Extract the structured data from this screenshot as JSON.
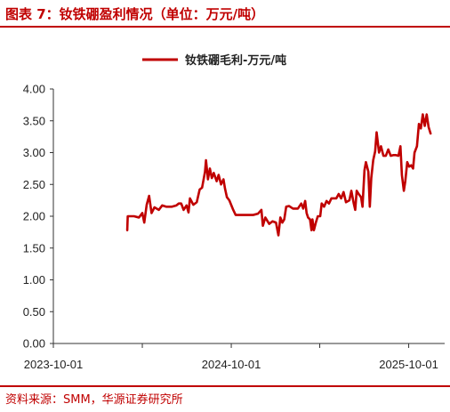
{
  "header": {
    "title": "图表 7：钕铁硼盈利情况（单位：万元/吨）"
  },
  "footer": {
    "source": "资料来源：SMM，华源证券研究所"
  },
  "colors": {
    "accent": "#c00000",
    "series": "#c00000"
  },
  "chart_data": {
    "type": "line",
    "title": "",
    "xlabel": "",
    "ylabel": "",
    "ylim": [
      0,
      4
    ],
    "yticks": [
      "0.00",
      "0.50",
      "1.00",
      "1.50",
      "2.00",
      "2.50",
      "3.00",
      "3.50",
      "4.00"
    ],
    "xlim": [
      "2023-10-01",
      "2025-12-14"
    ],
    "xticks": [
      "2023-10-01",
      "2024-10-01",
      "2025-10-01"
    ],
    "legend": "top-center",
    "grid": false,
    "series": [
      {
        "name": "钕铁硼毛利-万元/吨",
        "points": [
          [
            "2024-03-01",
            1.78
          ],
          [
            "2024-03-02",
            2.0
          ],
          [
            "2024-03-15",
            2.0
          ],
          [
            "2024-03-25",
            1.98
          ],
          [
            "2024-04-01",
            2.05
          ],
          [
            "2024-04-05",
            1.9
          ],
          [
            "2024-04-10",
            2.18
          ],
          [
            "2024-04-15",
            2.32
          ],
          [
            "2024-04-20",
            2.05
          ],
          [
            "2024-04-26",
            2.14
          ],
          [
            "2024-05-05",
            2.1
          ],
          [
            "2024-05-12",
            2.17
          ],
          [
            "2024-05-20",
            2.15
          ],
          [
            "2024-06-01",
            2.15
          ],
          [
            "2024-06-10",
            2.17
          ],
          [
            "2024-06-15",
            2.2
          ],
          [
            "2024-06-20",
            2.2
          ],
          [
            "2024-06-25",
            2.1
          ],
          [
            "2024-07-01",
            2.17
          ],
          [
            "2024-07-05",
            2.06
          ],
          [
            "2024-07-08",
            2.28
          ],
          [
            "2024-07-15",
            2.18
          ],
          [
            "2024-07-22",
            2.22
          ],
          [
            "2024-07-28",
            2.42
          ],
          [
            "2024-08-02",
            2.45
          ],
          [
            "2024-08-08",
            2.7
          ],
          [
            "2024-08-10",
            2.88
          ],
          [
            "2024-08-14",
            2.58
          ],
          [
            "2024-08-18",
            2.75
          ],
          [
            "2024-08-22",
            2.6
          ],
          [
            "2024-08-26",
            2.68
          ],
          [
            "2024-09-01",
            2.55
          ],
          [
            "2024-09-05",
            2.65
          ],
          [
            "2024-09-10",
            2.5
          ],
          [
            "2024-09-15",
            2.58
          ],
          [
            "2024-09-18",
            2.44
          ],
          [
            "2024-09-22",
            2.3
          ],
          [
            "2024-09-27",
            2.25
          ],
          [
            "2024-10-05",
            2.1
          ],
          [
            "2024-10-10",
            2.02
          ],
          [
            "2024-10-20",
            2.02
          ],
          [
            "2024-11-01",
            2.02
          ],
          [
            "2024-11-15",
            2.02
          ],
          [
            "2024-11-25",
            2.04
          ],
          [
            "2024-12-02",
            2.1
          ],
          [
            "2024-12-05",
            1.85
          ],
          [
            "2024-12-10",
            1.98
          ],
          [
            "2024-12-18",
            1.88
          ],
          [
            "2024-12-25",
            1.92
          ],
          [
            "2025-01-01",
            1.9
          ],
          [
            "2025-01-06",
            1.7
          ],
          [
            "2025-01-10",
            1.98
          ],
          [
            "2025-01-14",
            1.9
          ],
          [
            "2025-01-18",
            1.95
          ],
          [
            "2025-01-22",
            2.15
          ],
          [
            "2025-01-28",
            2.16
          ],
          [
            "2025-02-05",
            2.12
          ],
          [
            "2025-02-15",
            2.12
          ],
          [
            "2025-02-22",
            2.2
          ],
          [
            "2025-02-26",
            2.12
          ],
          [
            "2025-03-02",
            2.24
          ],
          [
            "2025-03-05",
            2.05
          ],
          [
            "2025-03-08",
            1.98
          ],
          [
            "2025-03-12",
            1.95
          ],
          [
            "2025-03-15",
            1.78
          ],
          [
            "2025-03-17",
            1.95
          ],
          [
            "2025-03-20",
            1.78
          ],
          [
            "2025-03-24",
            1.9
          ],
          [
            "2025-03-28",
            2.0
          ],
          [
            "2025-04-02",
            2.0
          ],
          [
            "2025-04-05",
            2.2
          ],
          [
            "2025-04-10",
            2.15
          ],
          [
            "2025-04-15",
            2.24
          ],
          [
            "2025-04-20",
            2.2
          ],
          [
            "2025-04-25",
            2.28
          ],
          [
            "2025-05-05",
            2.28
          ],
          [
            "2025-05-10",
            2.35
          ],
          [
            "2025-05-15",
            2.28
          ],
          [
            "2025-05-20",
            2.38
          ],
          [
            "2025-05-25",
            2.22
          ],
          [
            "2025-06-01",
            2.25
          ],
          [
            "2025-06-05",
            2.4
          ],
          [
            "2025-06-10",
            2.2
          ],
          [
            "2025-06-13",
            2.1
          ],
          [
            "2025-06-16",
            2.4
          ],
          [
            "2025-06-20",
            2.35
          ],
          [
            "2025-06-25",
            2.3
          ],
          [
            "2025-06-28",
            2.15
          ],
          [
            "2025-07-02",
            2.72
          ],
          [
            "2025-07-05",
            2.85
          ],
          [
            "2025-07-10",
            2.7
          ],
          [
            "2025-07-13",
            2.15
          ],
          [
            "2025-07-16",
            2.6
          ],
          [
            "2025-07-20",
            2.88
          ],
          [
            "2025-07-24",
            3.02
          ],
          [
            "2025-07-27",
            3.32
          ],
          [
            "2025-08-01",
            3.0
          ],
          [
            "2025-08-05",
            3.1
          ],
          [
            "2025-08-10",
            2.95
          ],
          [
            "2025-08-15",
            2.95
          ],
          [
            "2025-08-20",
            3.05
          ],
          [
            "2025-08-25",
            2.95
          ],
          [
            "2025-08-30",
            2.96
          ],
          [
            "2025-09-05",
            2.96
          ],
          [
            "2025-09-10",
            2.95
          ],
          [
            "2025-09-14",
            3.1
          ],
          [
            "2025-09-17",
            2.65
          ],
          [
            "2025-09-21",
            2.4
          ],
          [
            "2025-09-24",
            2.55
          ],
          [
            "2025-09-28",
            2.85
          ],
          [
            "2025-10-02",
            2.78
          ],
          [
            "2025-10-06",
            2.8
          ],
          [
            "2025-10-10",
            2.75
          ],
          [
            "2025-10-13",
            3.0
          ],
          [
            "2025-10-18",
            3.1
          ],
          [
            "2025-10-22",
            3.45
          ],
          [
            "2025-10-26",
            3.38
          ],
          [
            "2025-10-30",
            3.6
          ],
          [
            "2025-11-03",
            3.42
          ],
          [
            "2025-11-07",
            3.6
          ],
          [
            "2025-11-11",
            3.4
          ],
          [
            "2025-11-15",
            3.3
          ]
        ]
      }
    ]
  }
}
